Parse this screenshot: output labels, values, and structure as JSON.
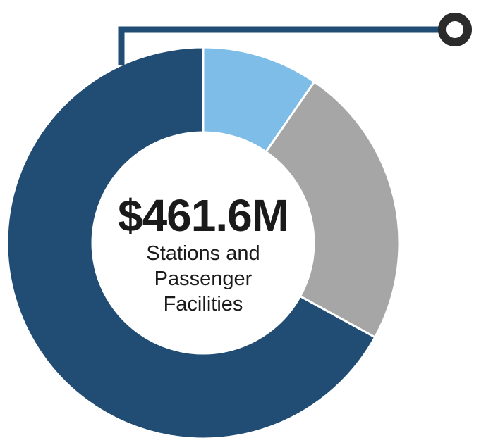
{
  "chart_data": {
    "type": "pie",
    "values": [
      9.6,
      23.4,
      67.0
    ],
    "colors": [
      "#7dbde8",
      "#a6a6a6",
      "#214d75"
    ],
    "center_value": "$461.6M",
    "center_label_lines": [
      "Stations and",
      "Passenger",
      "Facilities"
    ]
  },
  "colors": {
    "connector": "#214d75",
    "marker_ring": "#2b2b2b",
    "separator": "#ffffff"
  }
}
